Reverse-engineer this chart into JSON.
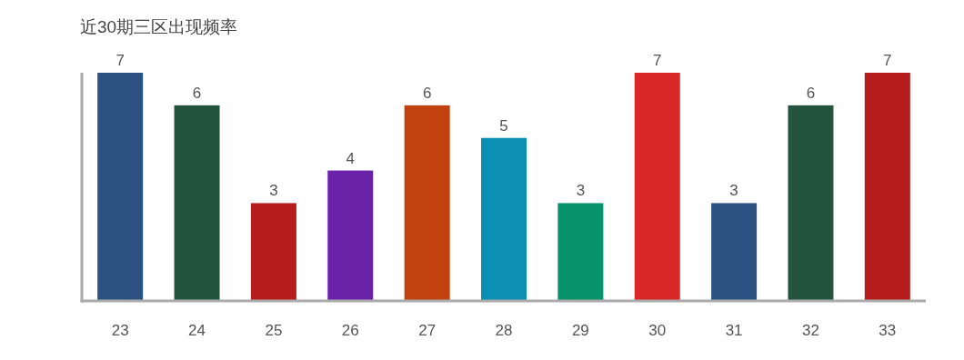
{
  "chart_data": {
    "type": "bar",
    "title": "近30期三区出现频率",
    "categories": [
      "23",
      "24",
      "25",
      "26",
      "27",
      "28",
      "29",
      "30",
      "31",
      "32",
      "33"
    ],
    "values": [
      7,
      6,
      3,
      4,
      6,
      5,
      3,
      7,
      3,
      6,
      7
    ],
    "colors": [
      "#2d5180",
      "#24543e",
      "#b71c1c",
      "#6a22a8",
      "#c2410f",
      "#0b8fb5",
      "#08936a",
      "#d92627",
      "#2d5180",
      "#24543e",
      "#b71c1c"
    ],
    "data_labels": true
  }
}
